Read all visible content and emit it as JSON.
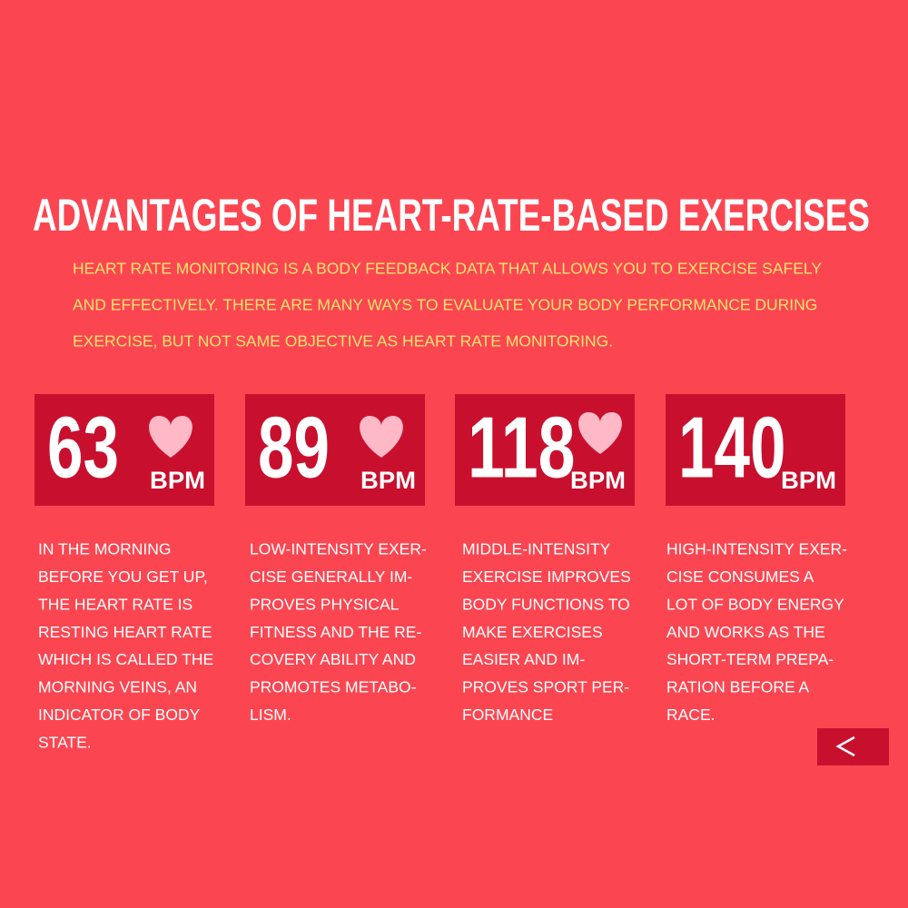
{
  "title": "ADVANTAGES OF HEART-RATE-BASED EXERCISES",
  "intro": [
    "HEART RATE MONITORING IS A BODY FEEDBACK DATA THAT ALLOWS YOU TO EXERCISE SAFELY",
    "AND EFFECTIVELY. THERE ARE MANY WAYS TO EVALUATE YOUR BODY PERFORMANCE DURING",
    "EXERCISE, BUT NOT SAME OBJECTIVE AS HEART RATE MONITORING."
  ],
  "cards": [
    {
      "value": "63",
      "unit": "BPM",
      "description": [
        "IN THE MORNING",
        "BEFORE YOU GET UP,",
        "THE HEART RATE IS",
        "RESTING HEART RATE",
        "WHICH IS CALLED THE",
        "MORNING VEINS, AN",
        "INDICATOR OF BODY",
        "STATE."
      ]
    },
    {
      "value": "89",
      "unit": "BPM",
      "description": [
        "LOW-INTENSITY EXER-",
        "CISE GENERALLY IM-",
        "PROVES PHYSICAL",
        "FITNESS AND THE RE-",
        "COVERY ABILITY AND",
        "PROMOTES METABO-",
        "LISM."
      ]
    },
    {
      "value": "118",
      "unit": "BPM",
      "description": [
        "MIDDLE-INTENSITY",
        "EXERCISE IMPROVES",
        "BODY FUNCTIONS TO",
        "MAKE EXERCISES",
        "EASIER AND IM-",
        "PROVES SPORT PER-",
        "FORMANCE"
      ]
    },
    {
      "value": "140",
      "unit": "BPM",
      "description": [
        "HIGH-INTENSITY EXER-",
        "CISE CONSUMES A",
        "LOT OF BODY ENERGY",
        "AND WORKS AS THE",
        "SHORT-TERM PREPA-",
        "RATION BEFORE A",
        "RACE."
      ]
    }
  ]
}
